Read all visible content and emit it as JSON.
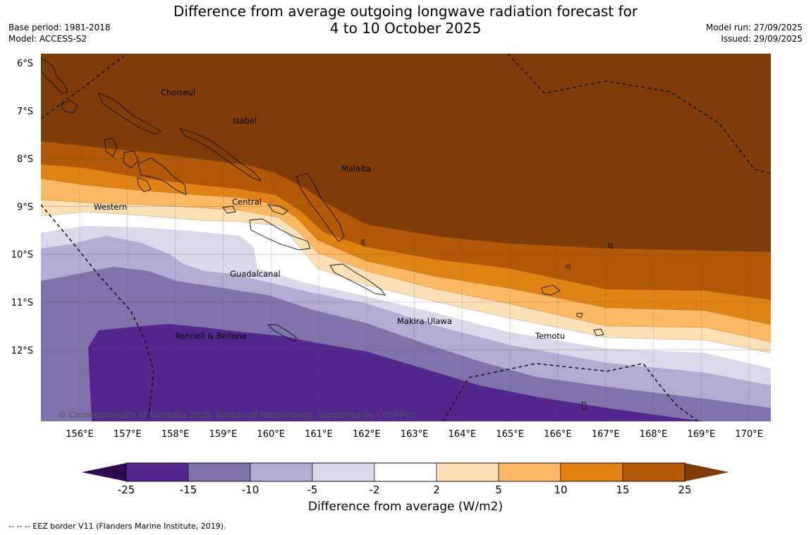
{
  "title": {
    "line1": "Difference from average outgoing longwave radiation forecast for",
    "line2": "4 to 10 October 2025"
  },
  "meta_left": {
    "base_period": "Base period: 1981-2018",
    "model": "Model: ACCESS-S2"
  },
  "meta_right": {
    "model_run": "Model run: 27/09/2025",
    "issued": "Issued: 29/09/2025"
  },
  "map": {
    "lon_ticks": [
      "156°E",
      "157°E",
      "158°E",
      "159°E",
      "160°E",
      "161°E",
      "162°E",
      "163°E",
      "164°E",
      "165°E",
      "166°E",
      "167°E",
      "168°E",
      "169°E",
      "170°E"
    ],
    "lat_ticks": [
      "6°S",
      "7°S",
      "8°S",
      "9°S",
      "10°S",
      "11°S",
      "12°S"
    ],
    "places": [
      {
        "name": "Choiseul"
      },
      {
        "name": "Isabel"
      },
      {
        "name": "Malaita"
      },
      {
        "name": "Western"
      },
      {
        "name": "Central"
      },
      {
        "name": "Guadalcanal"
      },
      {
        "name": "Makira-Ulawa"
      },
      {
        "name": "Temotu"
      },
      {
        "name": "Rennell & Bellona"
      }
    ],
    "copyright": "© Commonwealth of Australia 2025, Bureau of Meteorology, supported by COSPPac"
  },
  "colorbar": {
    "title": "Difference from average (W/m2)",
    "ticks": [
      "-25",
      "-15",
      "-10",
      "-5",
      "-2",
      "2",
      "5",
      "10",
      "15",
      "25"
    ],
    "colors": {
      "below_min": "#2d0b4e",
      "c1": "#54278f",
      "c2": "#8073ac",
      "c3": "#b2abd2",
      "c4": "#d8daeb",
      "c5": "#ffffff",
      "c6": "#fee0b6",
      "c7": "#fdb863",
      "c8": "#e08214",
      "c9": "#b35806",
      "above_max": "#7f3b08"
    }
  },
  "footnote": "--  --  -- EEZ border V11 (Flanders Marine Institute, 2019)."
}
